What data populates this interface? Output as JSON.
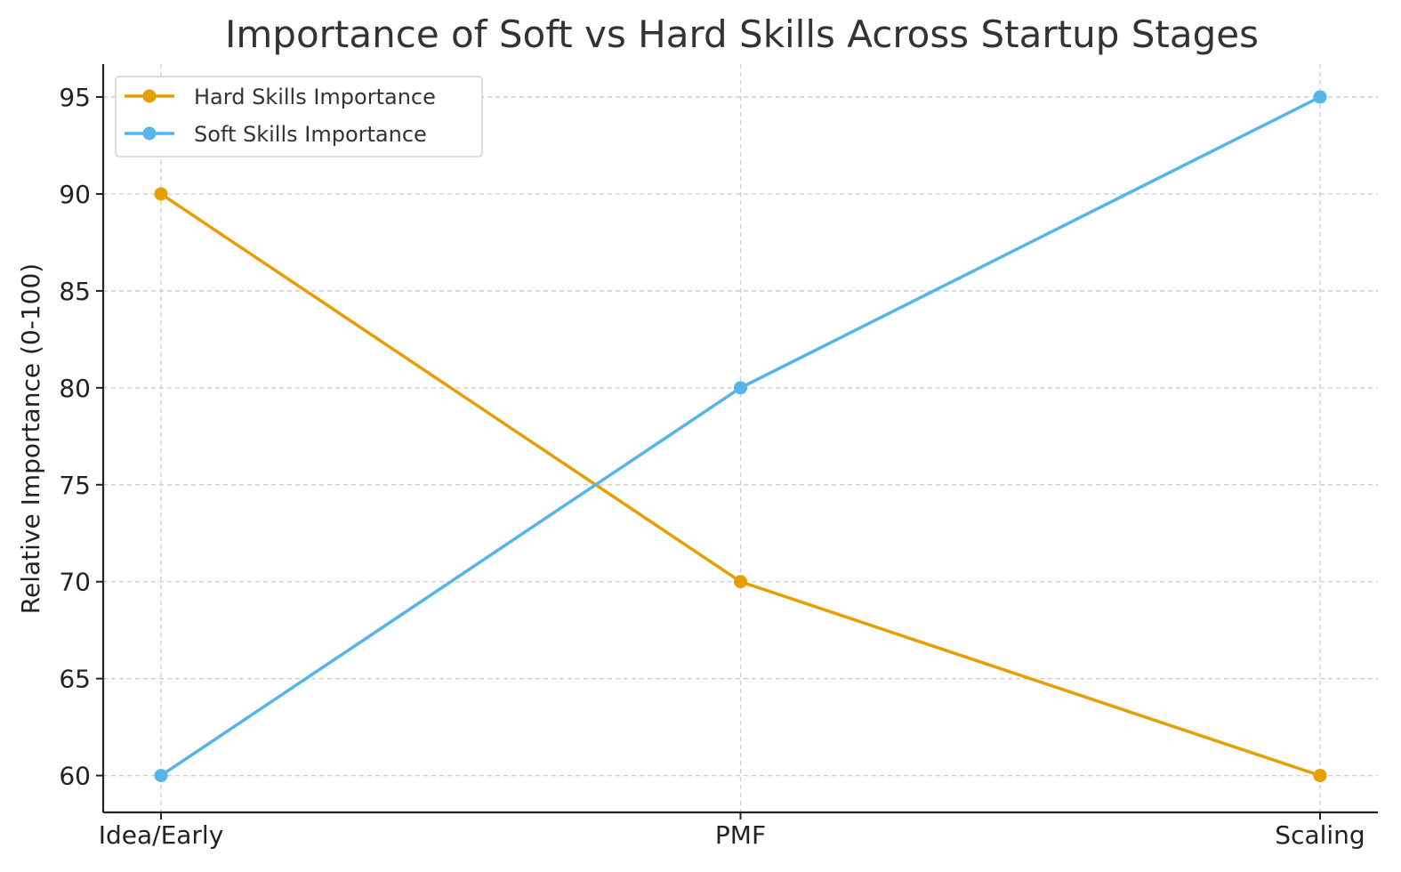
{
  "chart_data": {
    "type": "line",
    "title": "Importance of Soft vs Hard Skills Across Startup Stages",
    "xlabel": "",
    "ylabel": "Relative Importance (0-100)",
    "categories": [
      "Idea/Early",
      "PMF",
      "Scaling"
    ],
    "ylim": [
      58.1,
      96.7
    ],
    "yticks": [
      60,
      65,
      70,
      75,
      80,
      85,
      90,
      95
    ],
    "grid": true,
    "legend_position": "top-left",
    "series": [
      {
        "name": "Hard Skills Importance",
        "color": "#E69F00",
        "values": [
          90,
          70,
          60
        ]
      },
      {
        "name": "Soft Skills Importance",
        "color": "#56B4E9",
        "values": [
          60,
          80,
          95
        ]
      }
    ]
  }
}
